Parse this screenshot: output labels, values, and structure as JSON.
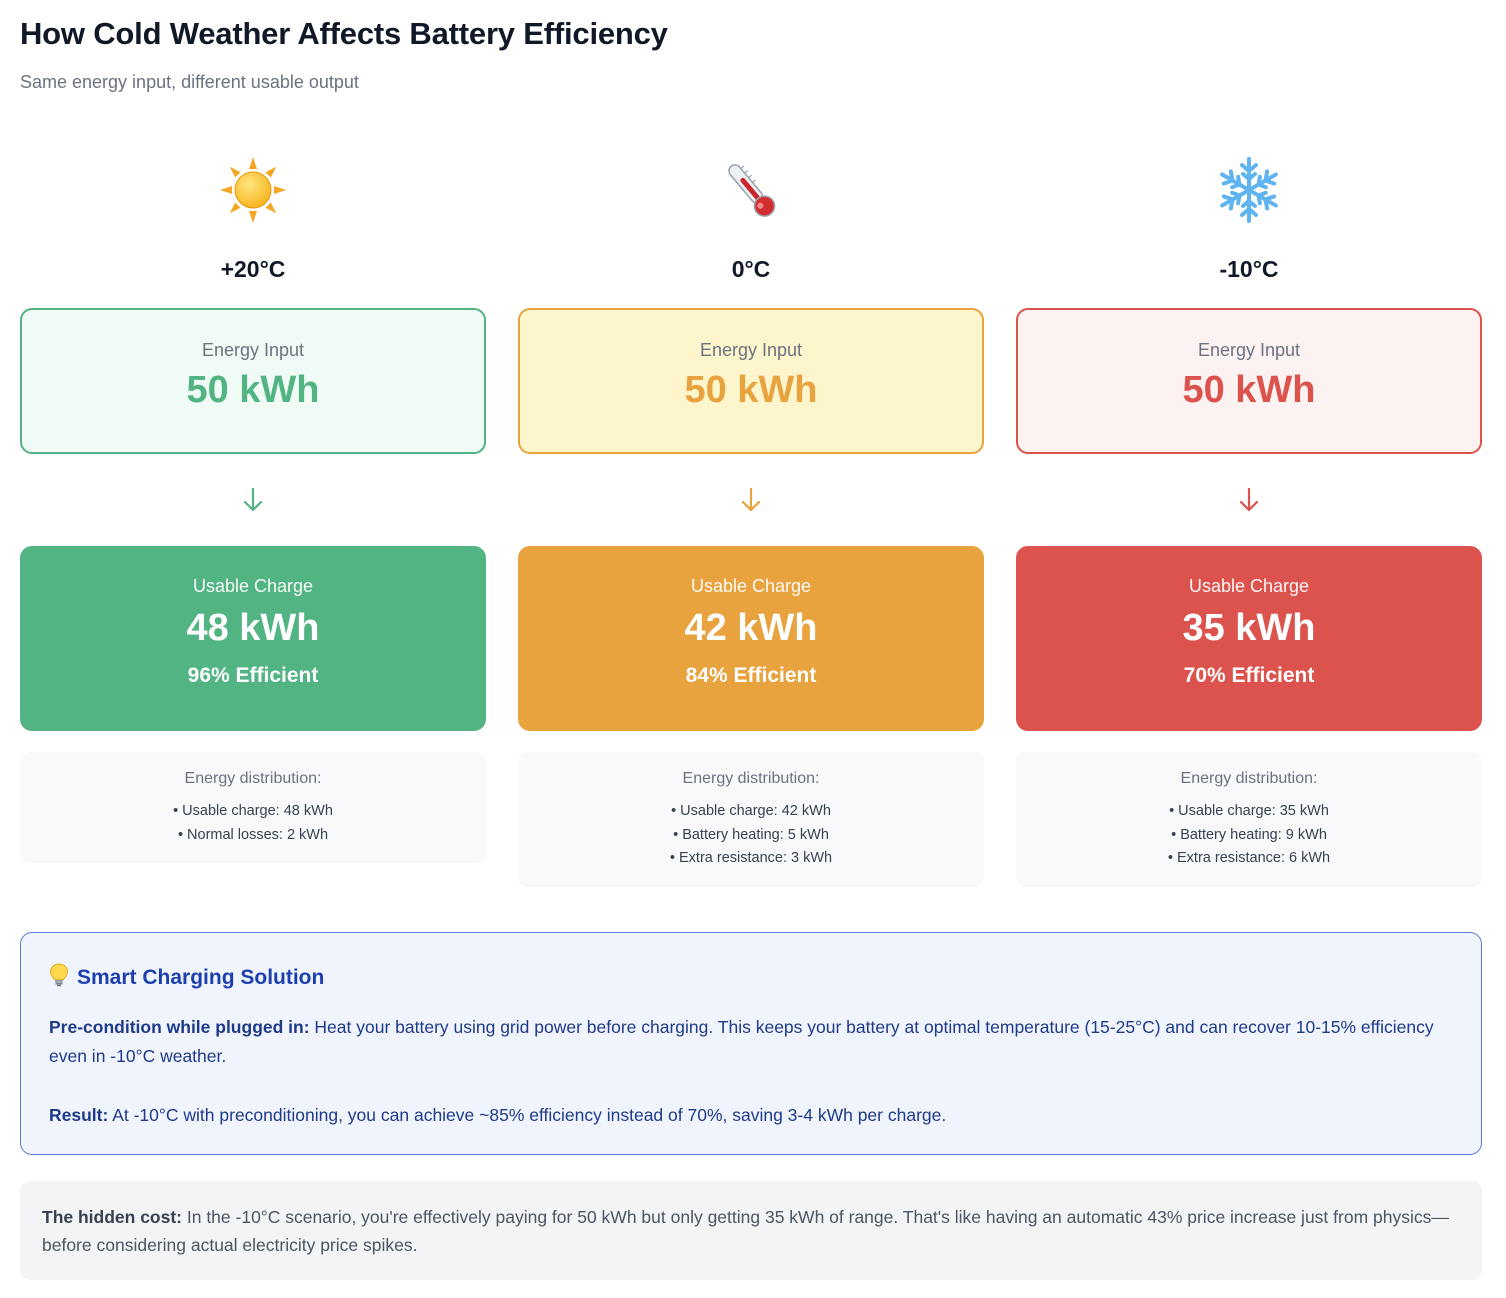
{
  "header": {
    "title": "How Cold Weather Affects Battery Efficiency",
    "subtitle": "Same energy input, different usable output"
  },
  "scenarios": [
    {
      "icon": "sun-icon",
      "temperature": "+20°C",
      "input_label": "Energy Input",
      "input_value": "50 kWh",
      "charge_label": "Usable Charge",
      "charge_value": "48 kWh",
      "efficiency": "96% Efficient",
      "distribution_title": "Energy distribution:",
      "distribution": [
        "• Usable charge: 48 kWh",
        "• Normal losses: 2 kWh"
      ],
      "color": "#52b483",
      "bg": "#f1fbf5"
    },
    {
      "icon": "thermometer-icon",
      "temperature": "0°C",
      "input_label": "Energy Input",
      "input_value": "50 kWh",
      "charge_label": "Usable Charge",
      "charge_value": "42 kWh",
      "efficiency": "84% Efficient",
      "distribution_title": "Energy distribution:",
      "distribution": [
        "• Usable charge: 42 kWh",
        "• Battery heating: 5 kWh",
        "• Extra resistance: 3 kWh"
      ],
      "color": "#e8a23e",
      "bg": "#fdf5cc"
    },
    {
      "icon": "snowflake-icon",
      "temperature": "-10°C",
      "input_label": "Energy Input",
      "input_value": "50 kWh",
      "charge_label": "Usable Charge",
      "charge_value": "35 kWh",
      "efficiency": "70% Efficient",
      "distribution_title": "Energy distribution:",
      "distribution": [
        "• Usable charge: 35 kWh",
        "• Battery heating: 9 kWh",
        "• Extra resistance: 6 kWh"
      ],
      "color": "#dc524c",
      "bg": "#fdf2f2"
    }
  ],
  "solution": {
    "icon": "lightbulb-icon",
    "title": "Smart Charging Solution",
    "p1_label": "Pre-condition while plugged in:",
    "p1_text": " Heat your battery using grid power before charging. This keeps your battery at optimal temperature (15-25°C) and can recover 10-15% efficiency even in -10°C weather.",
    "p2_label": "Result:",
    "p2_text": " At -10°C with preconditioning, you can achieve ~85% efficiency instead of 70%, saving 3-4 kWh per charge."
  },
  "hidden_cost": {
    "label": "The hidden cost:",
    "text": " In the -10°C scenario, you're effectively paying for 50 kWh but only getting 35 kWh of range. That's like having an automatic 43% price increase just from physics—before considering actual electricity price spikes."
  }
}
